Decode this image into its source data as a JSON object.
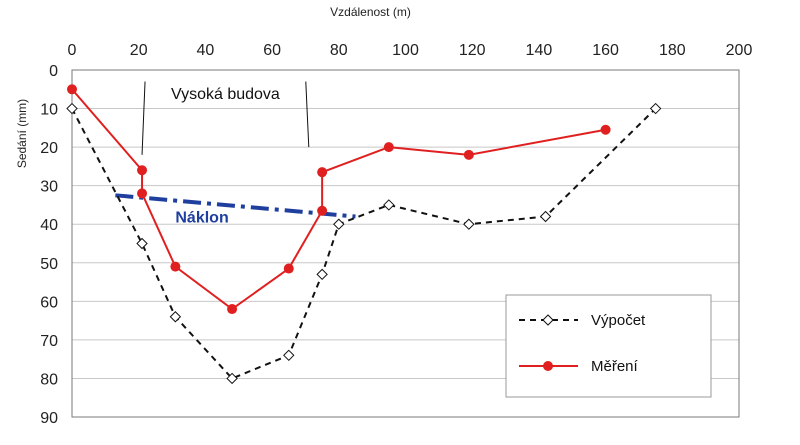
{
  "chart_data": {
    "type": "line",
    "xlabel": "Vzdálenost (m)",
    "ylabel": "Sedání (mm)",
    "xlim": [
      0,
      200
    ],
    "ylim": [
      0,
      90
    ],
    "y_reversed": true,
    "x_axis_position": "top",
    "xticks": [
      0,
      20,
      40,
      60,
      80,
      100,
      120,
      140,
      160,
      180,
      200
    ],
    "yticks": [
      0,
      10,
      20,
      30,
      40,
      50,
      60,
      70,
      80,
      90
    ],
    "grid": "horizontal",
    "colors": {
      "calc": "#111111",
      "meas": "#e02020",
      "tilt": "#1f3f9f",
      "grid": "#c8c8c8"
    },
    "series": [
      {
        "name": "Výpočet",
        "style": "dashed-diamond",
        "points": [
          [
            0,
            10
          ],
          [
            21,
            45
          ],
          [
            31,
            64
          ],
          [
            48,
            80
          ],
          [
            65,
            74
          ],
          [
            75,
            53
          ],
          [
            80,
            40
          ],
          [
            95,
            35
          ],
          [
            119,
            40
          ],
          [
            142,
            38
          ],
          [
            175,
            10
          ]
        ]
      },
      {
        "name": "Měření",
        "style": "solid-dot",
        "points": [
          [
            0,
            5
          ],
          [
            21,
            26
          ],
          [
            21,
            32
          ],
          [
            31,
            51
          ],
          [
            48,
            62
          ],
          [
            65,
            51.5
          ],
          [
            75,
            36.5
          ],
          [
            75,
            26.5
          ],
          [
            95,
            20
          ],
          [
            119,
            22
          ],
          [
            160,
            15.5
          ]
        ]
      }
    ],
    "tilt_line": {
      "label": "Náklon",
      "points": [
        [
          13,
          32.5
        ],
        [
          85,
          38
        ]
      ]
    },
    "building": {
      "label": "Vysoká budova",
      "left_x": 21,
      "right_x": 71,
      "label_x": 46,
      "label_y": 6
    },
    "legend": {
      "position": "bottom-right",
      "entries": [
        "Výpočet",
        "Měření"
      ]
    }
  }
}
